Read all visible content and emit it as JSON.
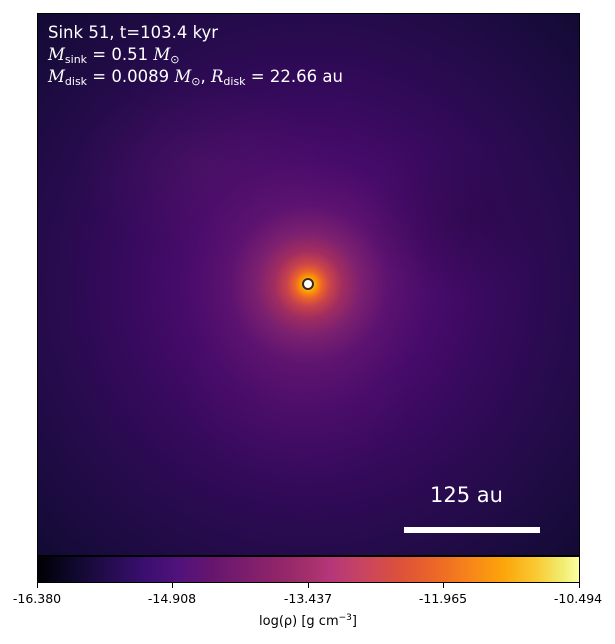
{
  "annotation": {
    "line1": "Sink 51, t=103.4 kyr",
    "m_sink_symbol": "M",
    "m_sink_sub": "sink",
    "m_sink_value": " = 0.51 ",
    "m_disk_symbol": "M",
    "m_disk_sub": "disk",
    "m_disk_value": " = 0.0089 ",
    "r_disk_symbol": "R",
    "r_disk_sub": "disk",
    "r_disk_value": " = 22.66 au",
    "solar_mass": "M",
    "solar_sub": "⊙"
  },
  "scale_bar": {
    "label": "125 au"
  },
  "colorbar": {
    "ticks": [
      "-16.380",
      "-14.908",
      "-13.437",
      "-11.965",
      "-10.494"
    ],
    "label_main": "log(ρ) [g cm",
    "label_exp": "−3",
    "label_close": "]",
    "cmap": "inferno"
  },
  "colors": {
    "marker_edge": "#3a2a14",
    "text": "#ffffff"
  }
}
